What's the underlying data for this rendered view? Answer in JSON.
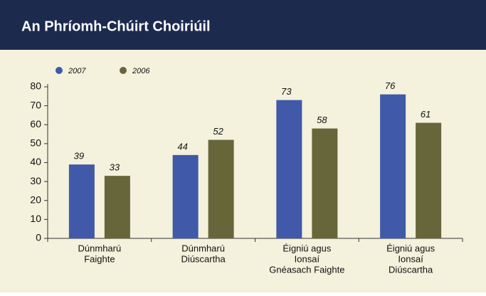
{
  "chart_data": {
    "type": "bar",
    "title": "An Phríomh-Chúirt Choiriúil",
    "categories": [
      [
        "Dúnmharú",
        "Faighte"
      ],
      [
        "Dúnmharú",
        "Diúscartha"
      ],
      [
        "Éigniú agus",
        "Ionsaí",
        "Gnéasach Faighte"
      ],
      [
        "Éigniú agus",
        "Ionsaí",
        "Diúscartha"
      ]
    ],
    "series": [
      {
        "name": "2007",
        "color": "#4059a8",
        "values": [
          39,
          44,
          73,
          76
        ]
      },
      {
        "name": "2006",
        "color": "#66663a",
        "values": [
          33,
          52,
          58,
          61
        ]
      }
    ],
    "ylim": [
      0,
      80
    ],
    "yticks": [
      0,
      10,
      20,
      30,
      40,
      50,
      60,
      70,
      80
    ],
    "legend": "top-left"
  }
}
